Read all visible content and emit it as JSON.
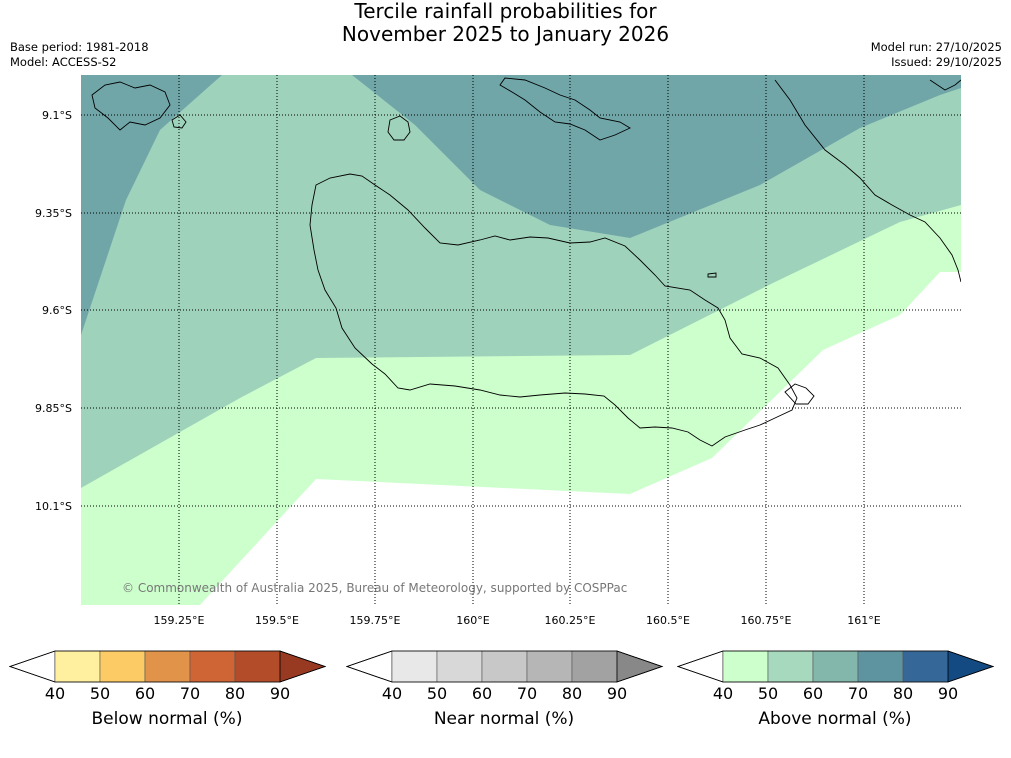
{
  "title_line1": "Tercile rainfall probabilities for",
  "title_line2": "November 2025 to January 2026",
  "base_period": "Base period: 1981-2018",
  "model": "Model: ACCESS-S2",
  "model_run": "Model run: 27/10/2025",
  "issued": "Issued: 29/10/2025",
  "copyright": "© Commonwealth of Australia 2025, Bureau of Meteorology, supported by COSPPac",
  "latitudes": [
    "9.1°S",
    "9.35°S",
    "9.6°S",
    "9.85°S",
    "10.1°S"
  ],
  "longitudes": [
    "159.25°E",
    "159.5°E",
    "159.75°E",
    "160°E",
    "160.25°E",
    "160.5°E",
    "160.75°E",
    "161°E"
  ],
  "legends": [
    {
      "label": "Below normal (%)",
      "ticks": [
        "40",
        "50",
        "60",
        "70",
        "80",
        "90"
      ],
      "colors": [
        "#ffffff",
        "#fff0a0",
        "#fdcb65",
        "#e2934a",
        "#cf6535",
        "#b24c29",
        "#983a22"
      ]
    },
    {
      "label": "Near normal (%)",
      "ticks": [
        "40",
        "50",
        "60",
        "70",
        "80",
        "90"
      ],
      "colors": [
        "#ffffff",
        "#e8e8e8",
        "#d8d8d8",
        "#c8c8c8",
        "#b6b6b6",
        "#a2a2a2",
        "#888888"
      ]
    },
    {
      "label": "Above normal (%)",
      "ticks": [
        "40",
        "50",
        "60",
        "70",
        "80",
        "90"
      ],
      "colors": [
        "#ffffff",
        "#ccffcc",
        "#a6d9bd",
        "#84b7ab",
        "#5e94a0",
        "#356898",
        "#134a82"
      ]
    }
  ]
}
